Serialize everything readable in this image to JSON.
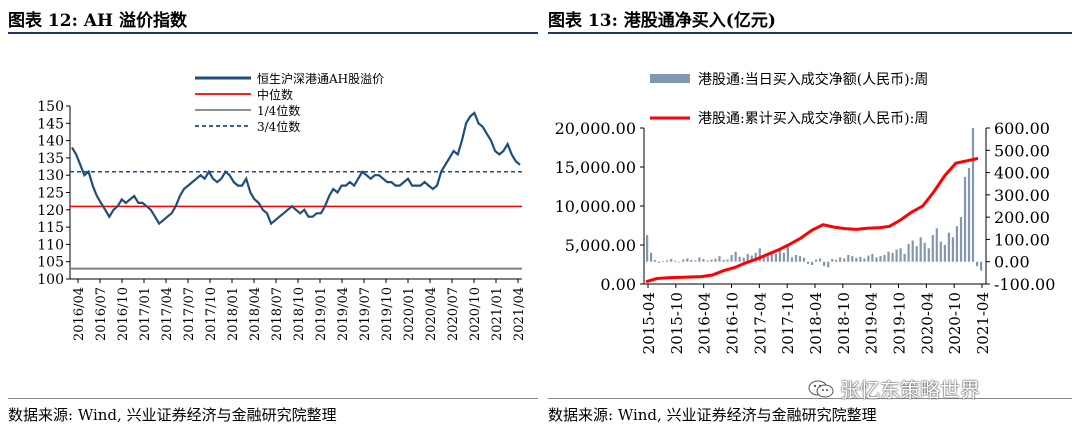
{
  "left_panel": {
    "title": "图表 12:  AH 溢价指数",
    "source": "数据来源:  Wind, 兴业证券经济与金融研究院整理"
  },
  "right_panel": {
    "title": "图表 13:  港股通净买入(亿元)",
    "source": "数据来源:  Wind, 兴业证券经济与金融研究院整理"
  },
  "watermark": {
    "text": "张忆东策略世界",
    "icon": "wechat-icon"
  },
  "colors": {
    "navy": "#1f4e79",
    "red": "#ff0000",
    "gray": "#7f7f7f",
    "bar": "#8497b0"
  },
  "chart_data": [
    {
      "type": "line",
      "legend": [
        "恒生沪深港通AH股溢价",
        "中位数",
        "1/4位数",
        "3/4位数"
      ],
      "legend_placement": "top-center",
      "x_ticks": [
        "2016/04",
        "2016/07",
        "2016/10",
        "2017/01",
        "2017/04",
        "2017/07",
        "2017/10",
        "2018/01",
        "2018/04",
        "2018/07",
        "2018/10",
        "2019/01",
        "2019/04",
        "2019/07",
        "2019/10",
        "2020/01",
        "2020/04",
        "2020/07",
        "2020/10",
        "2021/01",
        "2021/04"
      ],
      "y_ticks": [
        100,
        105,
        110,
        115,
        120,
        125,
        130,
        135,
        140,
        145,
        150
      ],
      "ylim": [
        100,
        150
      ],
      "series": [
        {
          "name": "恒生沪深港通AH股溢价",
          "style": "solid",
          "color": "#1f4e79",
          "values": [
            138,
            136,
            133,
            130,
            131,
            127,
            124,
            122,
            120,
            118,
            120,
            121,
            123,
            122,
            123,
            124,
            122,
            122,
            121,
            120,
            118,
            116,
            117,
            118,
            119,
            121,
            124,
            126,
            127,
            128,
            129,
            130,
            129,
            131,
            129,
            128,
            129,
            131,
            130,
            128,
            127,
            127,
            129,
            125,
            123,
            122,
            120,
            119,
            116,
            117,
            118,
            119,
            120,
            121,
            120,
            119,
            120,
            118,
            118,
            119,
            119,
            121,
            124,
            126,
            125,
            127,
            127,
            128,
            127,
            129,
            131,
            130,
            129,
            130,
            130,
            129,
            128,
            128,
            127,
            127,
            128,
            129,
            127,
            127,
            127,
            128,
            127,
            126,
            127,
            131,
            133,
            135,
            137,
            136,
            140,
            145,
            147,
            148,
            145,
            144,
            142,
            140,
            137,
            136,
            137,
            139,
            136,
            134,
            133
          ]
        },
        {
          "name": "中位数",
          "style": "solid",
          "color": "#ff0000",
          "value": 121
        },
        {
          "name": "1/4位数",
          "style": "solid",
          "color": "#7f7f7f",
          "value": 103
        },
        {
          "name": "3/4位数",
          "style": "dashed",
          "color": "#1f4e79",
          "value": 131
        }
      ]
    },
    {
      "type": "bar+line",
      "legend": [
        "港股通:当日买入成交净额(人民币):周",
        "港股通:累计买入成交净额(人民币):周"
      ],
      "legend_placement": "top",
      "x_ticks": [
        "2015-04",
        "2015-10",
        "2016-04",
        "2016-10",
        "2017-04",
        "2017-10",
        "2018-04",
        "2018-10",
        "2019-04",
        "2019-10",
        "2020-04",
        "2020-10",
        "2021-04"
      ],
      "y_left_ticks": [
        "0.00",
        "5,000.00",
        "10,000.00",
        "15,000.00",
        "20,000.00"
      ],
      "ylim_left": [
        0,
        20000
      ],
      "y_right_ticks": [
        "-100.00",
        "0.00",
        "100.00",
        "200.00",
        "300.00",
        "400.00",
        "500.00",
        "600.00"
      ],
      "ylim_right": [
        -100,
        600
      ],
      "series": [
        {
          "name": "港股通:当日买入成交净额(人民币):周",
          "kind": "bar",
          "axis": "right",
          "color": "#8497b0",
          "values": [
            120,
            40,
            8,
            -5,
            3,
            6,
            12,
            4,
            -3,
            10,
            15,
            8,
            6,
            20,
            12,
            5,
            9,
            14,
            25,
            8,
            10,
            30,
            45,
            22,
            18,
            35,
            28,
            40,
            60,
            30,
            25,
            45,
            35,
            55,
            40,
            70,
            20,
            30,
            25,
            18,
            -10,
            -15,
            10,
            15,
            -20,
            -25,
            12,
            8,
            20,
            15,
            30,
            25,
            18,
            22,
            15,
            28,
            35,
            20,
            25,
            30,
            45,
            40,
            55,
            60,
            35,
            80,
            95,
            70,
            110,
            85,
            60,
            120,
            150,
            90,
            75,
            130,
            110,
            160,
            200,
            380,
            420,
            600,
            -20,
            -40
          ]
        },
        {
          "name": "港股通:累计买入成交净额(人民币):周",
          "kind": "line",
          "axis": "left",
          "color": "#ff0000",
          "values": [
            300,
            700,
            800,
            850,
            900,
            950,
            1150,
            1700,
            2100,
            2700,
            3200,
            3800,
            4400,
            5100,
            5900,
            6900,
            7600,
            7300,
            7100,
            7000,
            7150,
            7200,
            7400,
            8200,
            9200,
            10000,
            11800,
            13900,
            15500,
            15800,
            16100
          ]
        }
      ]
    }
  ]
}
